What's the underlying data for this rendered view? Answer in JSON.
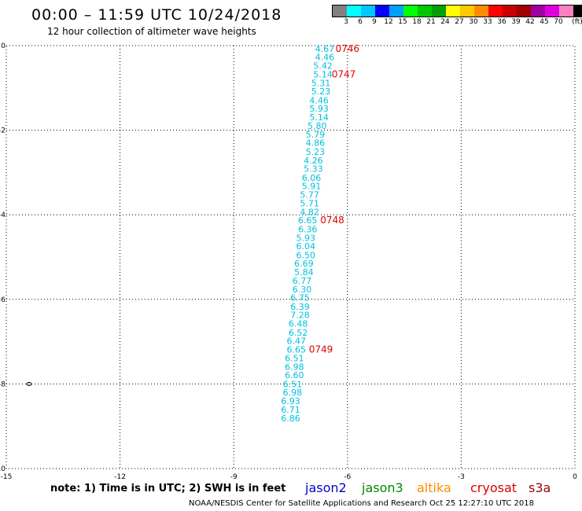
{
  "header": {
    "title": "00:00 – 11:59 UTC 10/24/2018",
    "subtitle": "12 hour collection of altimeter wave heights"
  },
  "legend": {
    "colors": [
      "#808080",
      "#00ffff",
      "#00c8ff",
      "#0000ff",
      "#00a0ff",
      "#00ff00",
      "#00c800",
      "#00a000",
      "#ffff00",
      "#ffc800",
      "#ff8c00",
      "#ff0000",
      "#c80000",
      "#a00000",
      "#a000a0",
      "#e000e0",
      "#ff80c0",
      "#000000"
    ],
    "labels": [
      "3",
      "6",
      "9",
      "12",
      "15",
      "18",
      "21",
      "24",
      "27",
      "30",
      "33",
      "36",
      "39",
      "42",
      "45",
      "70",
      "(ft)"
    ]
  },
  "chart_data": {
    "type": "scatter",
    "xlim": [
      -15,
      0
    ],
    "ylim": [
      -10,
      0
    ],
    "x_ticks": [
      "-15",
      "-12",
      "-9",
      "-6",
      "-3",
      "0"
    ],
    "y_ticks": [
      "0",
      "-2",
      "-4",
      "-6",
      "-8",
      "-10"
    ],
    "grid": true,
    "swh_color": "#00c0e0",
    "time_color": "#e00000",
    "swh_labels": [
      {
        "x": -6.6,
        "y": -0.07,
        "value": "4.67"
      },
      {
        "x": -6.6,
        "y": -0.27,
        "value": "4.46"
      },
      {
        "x": -6.65,
        "y": -0.47,
        "value": "5.42"
      },
      {
        "x": -6.65,
        "y": -0.68,
        "value": "5.14"
      },
      {
        "x": -6.7,
        "y": -0.88,
        "value": "5.31"
      },
      {
        "x": -6.7,
        "y": -1.08,
        "value": "5.23"
      },
      {
        "x": -6.75,
        "y": -1.29,
        "value": "4.46"
      },
      {
        "x": -6.75,
        "y": -1.49,
        "value": "5.93"
      },
      {
        "x": -6.75,
        "y": -1.69,
        "value": "5.14"
      },
      {
        "x": -6.8,
        "y": -1.9,
        "value": "5.80"
      },
      {
        "x": -6.85,
        "y": -2.1,
        "value": "5.79"
      },
      {
        "x": -6.85,
        "y": -2.3,
        "value": "4.86"
      },
      {
        "x": -6.85,
        "y": -2.51,
        "value": "5.23"
      },
      {
        "x": -6.9,
        "y": -2.71,
        "value": "4.26"
      },
      {
        "x": -6.9,
        "y": -2.91,
        "value": "5.33"
      },
      {
        "x": -6.95,
        "y": -3.12,
        "value": "6.06"
      },
      {
        "x": -6.95,
        "y": -3.32,
        "value": "5.91"
      },
      {
        "x": -7.0,
        "y": -3.52,
        "value": "5.77"
      },
      {
        "x": -7.0,
        "y": -3.73,
        "value": "5.71"
      },
      {
        "x": -7.0,
        "y": -3.93,
        "value": "4.82"
      },
      {
        "x": -7.05,
        "y": -4.13,
        "value": "6.65"
      },
      {
        "x": -7.05,
        "y": -4.34,
        "value": "6.36"
      },
      {
        "x": -7.1,
        "y": -4.54,
        "value": "5.93"
      },
      {
        "x": -7.1,
        "y": -4.74,
        "value": "6.04"
      },
      {
        "x": -7.1,
        "y": -4.95,
        "value": "6.50"
      },
      {
        "x": -7.15,
        "y": -5.15,
        "value": "6.69"
      },
      {
        "x": -7.15,
        "y": -5.35,
        "value": "5.84"
      },
      {
        "x": -7.2,
        "y": -5.56,
        "value": "6.77"
      },
      {
        "x": -7.2,
        "y": -5.76,
        "value": "6.30"
      },
      {
        "x": -7.25,
        "y": -5.96,
        "value": "6.75"
      },
      {
        "x": -7.25,
        "y": -6.17,
        "value": "6.39"
      },
      {
        "x": -7.25,
        "y": -6.37,
        "value": "7.28"
      },
      {
        "x": -7.3,
        "y": -6.57,
        "value": "6.48"
      },
      {
        "x": -7.3,
        "y": -6.78,
        "value": "6.52"
      },
      {
        "x": -7.35,
        "y": -6.98,
        "value": "6.47"
      },
      {
        "x": -7.35,
        "y": -7.18,
        "value": "6.65"
      },
      {
        "x": -7.4,
        "y": -7.39,
        "value": "6.51"
      },
      {
        "x": -7.4,
        "y": -7.59,
        "value": "6.98"
      },
      {
        "x": -7.4,
        "y": -7.79,
        "value": "6.60"
      },
      {
        "x": -7.45,
        "y": -8.0,
        "value": "6.51"
      },
      {
        "x": -7.45,
        "y": -8.2,
        "value": "6.98"
      },
      {
        "x": -7.5,
        "y": -8.4,
        "value": "6.93"
      },
      {
        "x": -7.5,
        "y": -8.61,
        "value": "6.71"
      },
      {
        "x": -7.5,
        "y": -8.81,
        "value": "6.86"
      }
    ],
    "time_labels": [
      {
        "x": -6.0,
        "y": -0.07,
        "value": "0746"
      },
      {
        "x": -6.1,
        "y": -0.68,
        "value": "0747"
      },
      {
        "x": -6.4,
        "y": -4.13,
        "value": "0748"
      },
      {
        "x": -6.7,
        "y": -7.18,
        "value": "0749"
      }
    ]
  },
  "footer": {
    "note": "note: 1) Time is in UTC; 2) SWH is in feet",
    "satellites": [
      {
        "name": "jason2",
        "color": "#0000cc"
      },
      {
        "name": "jason3",
        "color": "#008800"
      },
      {
        "name": "altika",
        "color": "#ff8c00"
      },
      {
        "name": "cryosat",
        "color": "#dd0000"
      },
      {
        "name": "s3a",
        "color": "#990000"
      }
    ],
    "credit": "NOAA/NESDIS Center for Satellite Applications and Research     Oct 25 12:27:10 UTC 2018"
  }
}
